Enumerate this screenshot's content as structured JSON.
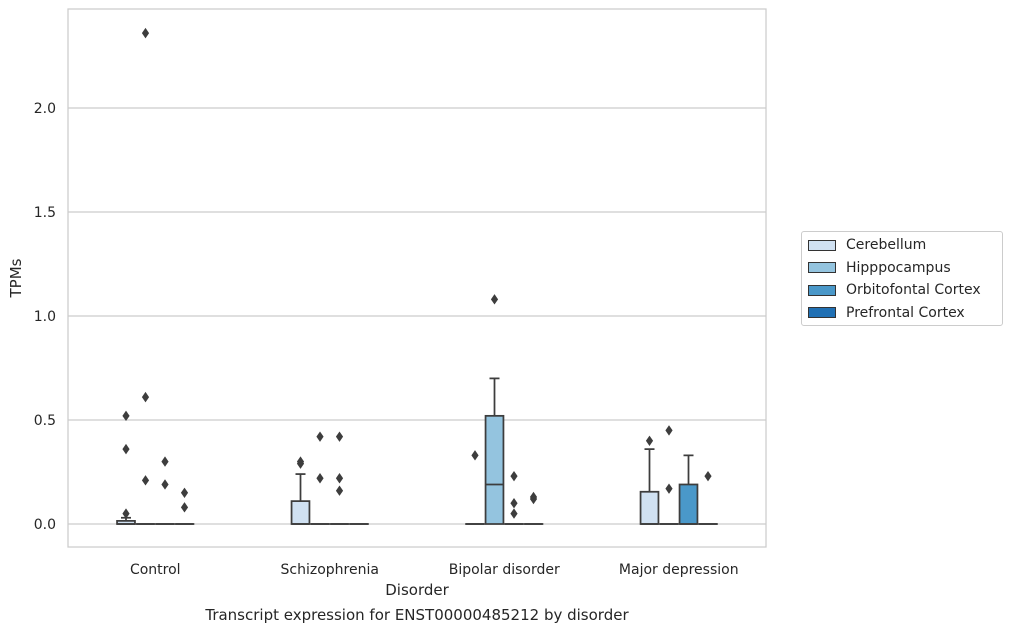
{
  "chart_data": {
    "type": "box",
    "title": "",
    "xlabel": "Disorder",
    "ylabel": "TPMs",
    "caption": "Transcript expression for ENST00000485212 by disorder",
    "categories": [
      "Control",
      "Schizophrenia",
      "Bipolar disorder",
      "Major depression"
    ],
    "ylim": [
      -0.11,
      2.47
    ],
    "yticks": [
      0.0,
      0.5,
      1.0,
      1.5,
      2.0
    ],
    "ytick_labels": [
      "0.0",
      "0.5",
      "1.0",
      "1.5",
      "2.0"
    ],
    "grid": "horizontal",
    "legend_position": "right",
    "series": [
      {
        "name": "Cerebellum",
        "color": "#d0e1f2",
        "boxes": [
          {
            "q1": 0.0,
            "median": 0.0,
            "q3": 0.015,
            "whisker_low": 0.0,
            "whisker_high": 0.03,
            "outliers": [
              0.05,
              0.36,
              0.52
            ]
          },
          {
            "q1": 0.0,
            "median": 0.0,
            "q3": 0.11,
            "whisker_low": 0.0,
            "whisker_high": 0.24,
            "outliers": [
              0.29,
              0.3
            ]
          },
          {
            "q1": 0.0,
            "median": 0.0,
            "q3": 0.0,
            "whisker_low": 0.0,
            "whisker_high": 0.0,
            "outliers": [
              0.33
            ]
          },
          {
            "q1": 0.0,
            "median": 0.0,
            "q3": 0.155,
            "whisker_low": 0.0,
            "whisker_high": 0.36,
            "outliers": [
              0.4
            ]
          }
        ]
      },
      {
        "name": "Hipppocampus",
        "color": "#94c4df",
        "boxes": [
          {
            "q1": 0.0,
            "median": 0.0,
            "q3": 0.0,
            "whisker_low": 0.0,
            "whisker_high": 0.0,
            "outliers": [
              0.21,
              0.61,
              2.36
            ]
          },
          {
            "q1": 0.0,
            "median": 0.0,
            "q3": 0.0,
            "whisker_low": 0.0,
            "whisker_high": 0.0,
            "outliers": [
              0.22,
              0.42
            ]
          },
          {
            "q1": 0.0,
            "median": 0.19,
            "q3": 0.52,
            "whisker_low": 0.0,
            "whisker_high": 0.7,
            "outliers": [
              1.08
            ]
          },
          {
            "q1": 0.0,
            "median": 0.0,
            "q3": 0.0,
            "whisker_low": 0.0,
            "whisker_high": 0.0,
            "outliers": [
              0.17,
              0.45
            ]
          }
        ]
      },
      {
        "name": "Orbitofontal Cortex",
        "color": "#4a98c9",
        "boxes": [
          {
            "q1": 0.0,
            "median": 0.0,
            "q3": 0.0,
            "whisker_low": 0.0,
            "whisker_high": 0.0,
            "outliers": [
              0.19,
              0.3
            ]
          },
          {
            "q1": 0.0,
            "median": 0.0,
            "q3": 0.0,
            "whisker_low": 0.0,
            "whisker_high": 0.0,
            "outliers": [
              0.16,
              0.22,
              0.42
            ]
          },
          {
            "q1": 0.0,
            "median": 0.0,
            "q3": 0.0,
            "whisker_low": 0.0,
            "whisker_high": 0.0,
            "outliers": [
              0.05,
              0.1,
              0.23
            ]
          },
          {
            "q1": 0.0,
            "median": 0.0,
            "q3": 0.19,
            "whisker_low": 0.0,
            "whisker_high": 0.33,
            "outliers": []
          }
        ]
      },
      {
        "name": "Prefrontal Cortex",
        "color": "#2070b4",
        "boxes": [
          {
            "q1": 0.0,
            "median": 0.0,
            "q3": 0.0,
            "whisker_low": 0.0,
            "whisker_high": 0.0,
            "outliers": [
              0.08,
              0.15
            ]
          },
          {
            "q1": 0.0,
            "median": 0.0,
            "q3": 0.0,
            "whisker_low": 0.0,
            "whisker_high": 0.0,
            "outliers": []
          },
          {
            "q1": 0.0,
            "median": 0.0,
            "q3": 0.0,
            "whisker_low": 0.0,
            "whisker_high": 0.0,
            "outliers": [
              0.12,
              0.13
            ]
          },
          {
            "q1": 0.0,
            "median": 0.0,
            "q3": 0.0,
            "whisker_low": 0.0,
            "whisker_high": 0.0,
            "outliers": [
              0.23
            ]
          }
        ]
      }
    ]
  }
}
